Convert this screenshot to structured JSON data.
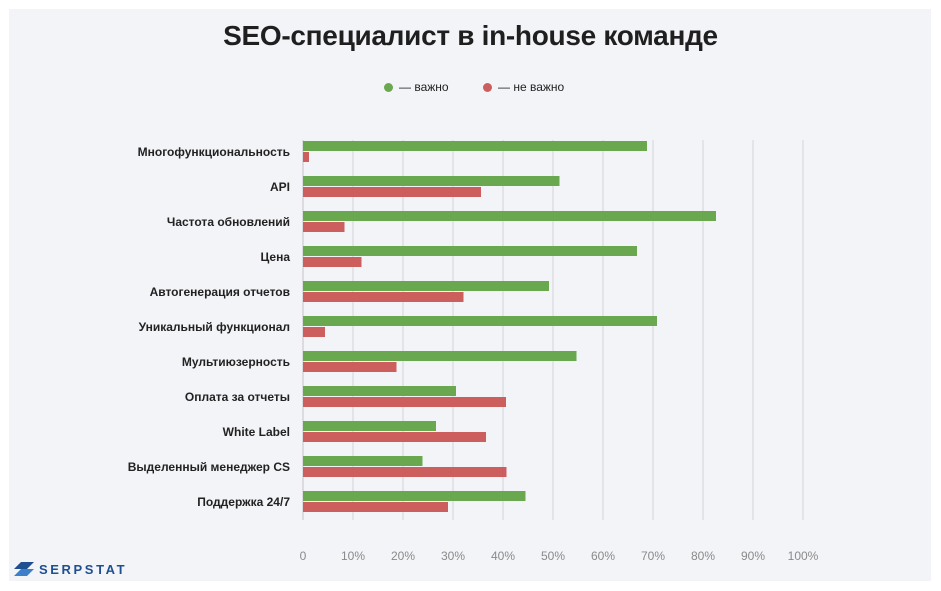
{
  "title": "SEO-специалист в in-house команде",
  "brand": "SERPSTAT",
  "colors": {
    "important": "#6aa84f",
    "not_important": "#cc5e5e",
    "brand": "#1d4f91"
  },
  "chart_data": {
    "type": "bar",
    "orientation": "horizontal",
    "title": "SEO-специалист в in-house команде",
    "xlabel": "",
    "ylabel": "",
    "xlim": [
      0,
      100
    ],
    "x_ticks": [
      "0",
      "10%",
      "20%",
      "30%",
      "40%",
      "50%",
      "60%",
      "70%",
      "80%",
      "90%",
      "100%"
    ],
    "grid": true,
    "legend_position": "top",
    "categories": [
      "Многофункциональность",
      "API",
      "Частота обновлений",
      "Цена",
      "Автогенерация отчетов",
      "Уникальный функционал",
      "Мультиюзерность",
      "Оплата  за отчеты",
      "White Label",
      "Выделенный менеджер CS",
      "Поддержка 24/7"
    ],
    "series": [
      {
        "name": "— важно",
        "color": "#6aa84f",
        "values": [
          68.8,
          51.3,
          82.6,
          66.8,
          49.2,
          70.8,
          54.7,
          30.6,
          26.6,
          23.9,
          44.5
        ]
      },
      {
        "name": "— не важно",
        "color": "#cc5e5e",
        "values": [
          1.2,
          35.6,
          8.3,
          11.7,
          32.1,
          4.4,
          18.7,
          40.6,
          36.6,
          40.7,
          29.0
        ]
      }
    ]
  }
}
